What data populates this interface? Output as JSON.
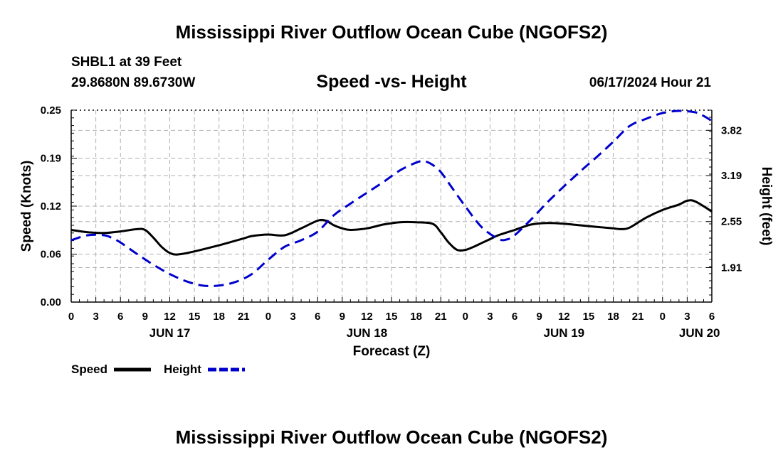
{
  "page": {
    "title_top": "Mississippi River Outflow Ocean Cube (NGOFS2)",
    "title_bottom": "Mississippi River Outflow Ocean Cube (NGOFS2)",
    "station": "SHBL1 at 39 Feet",
    "coords": "29.8680N  89.6730W",
    "subtitle": "Speed -vs- Height",
    "datetime": "06/17/2024 Hour 21"
  },
  "colors": {
    "speed": "#000000",
    "height": "#0000cc",
    "grid": "#b0b0b0"
  },
  "chart_data": {
    "type": "line",
    "title": "Speed -vs- Height",
    "xlabel": "Forecast (Z)",
    "ylabel": "Speed (Knots)",
    "y2label": "Height (feet)",
    "x_range_hours": [
      0,
      78
    ],
    "x_tick_labels": [
      "0",
      "3",
      "6",
      "9",
      "12",
      "15",
      "18",
      "21",
      "0",
      "3",
      "6",
      "9",
      "12",
      "15",
      "18",
      "21",
      "0",
      "3",
      "6",
      "9",
      "12",
      "15",
      "18",
      "21",
      "0",
      "3",
      "6"
    ],
    "day_labels": [
      {
        "label": "JUN 17",
        "hour": 12
      },
      {
        "label": "JUN 18",
        "hour": 36
      },
      {
        "label": "JUN 19",
        "hour": 60
      },
      {
        "label": "JUN 20",
        "hour": 76.5
      }
    ],
    "ylim": [
      0,
      0.25
    ],
    "y_ticks": [
      "0.00",
      "0.06",
      "0.12",
      "0.19",
      "0.25"
    ],
    "y2lim": [
      1.43,
      4.1
    ],
    "y2_ticks": [
      "1.91",
      "2.55",
      "3.19",
      "3.82"
    ],
    "legend": [
      {
        "name": "Speed",
        "style": "solid"
      },
      {
        "name": "Height",
        "style": "dashed"
      }
    ],
    "series": [
      {
        "name": "Speed",
        "axis": "left",
        "x": [
          0,
          2,
          4,
          6,
          8,
          9,
          10,
          11,
          12,
          13,
          15,
          18,
          21,
          22,
          24,
          26,
          28,
          30,
          31,
          32,
          33,
          34,
          36,
          38,
          40,
          42,
          44,
          45,
          46,
          47,
          48,
          49,
          50,
          51,
          52,
          54,
          56,
          58,
          60,
          62,
          64,
          66,
          67,
          68,
          70,
          72,
          74,
          75,
          76,
          78
        ],
        "values": [
          0.094,
          0.091,
          0.09,
          0.092,
          0.095,
          0.094,
          0.084,
          0.072,
          0.064,
          0.062,
          0.066,
          0.074,
          0.083,
          0.086,
          0.088,
          0.087,
          0.096,
          0.106,
          0.106,
          0.1,
          0.096,
          0.094,
          0.096,
          0.101,
          0.104,
          0.104,
          0.102,
          0.091,
          0.077,
          0.068,
          0.068,
          0.072,
          0.077,
          0.082,
          0.087,
          0.094,
          0.101,
          0.103,
          0.102,
          0.1,
          0.098,
          0.096,
          0.095,
          0.097,
          0.11,
          0.12,
          0.127,
          0.132,
          0.131,
          0.118
        ]
      },
      {
        "name": "Height",
        "axis": "right",
        "x": [
          0,
          2,
          4,
          5,
          6,
          8,
          10,
          12,
          14,
          16,
          18,
          20,
          22,
          24,
          26,
          28,
          30,
          32,
          34,
          36,
          38,
          40,
          42,
          43,
          44,
          45,
          46,
          48,
          50,
          52,
          53,
          54,
          56,
          58,
          60,
          62,
          64,
          66,
          68,
          70,
          72,
          74,
          76,
          77,
          78
        ],
        "values": [
          2.29,
          2.36,
          2.36,
          2.32,
          2.26,
          2.1,
          1.95,
          1.82,
          1.72,
          1.66,
          1.66,
          1.71,
          1.82,
          2.02,
          2.2,
          2.29,
          2.41,
          2.64,
          2.8,
          2.95,
          3.1,
          3.26,
          3.37,
          3.39,
          3.34,
          3.24,
          3.08,
          2.76,
          2.47,
          2.31,
          2.3,
          2.36,
          2.58,
          2.82,
          3.04,
          3.25,
          3.45,
          3.66,
          3.88,
          3.98,
          4.06,
          4.09,
          4.07,
          4.02,
          3.95
        ]
      }
    ]
  }
}
